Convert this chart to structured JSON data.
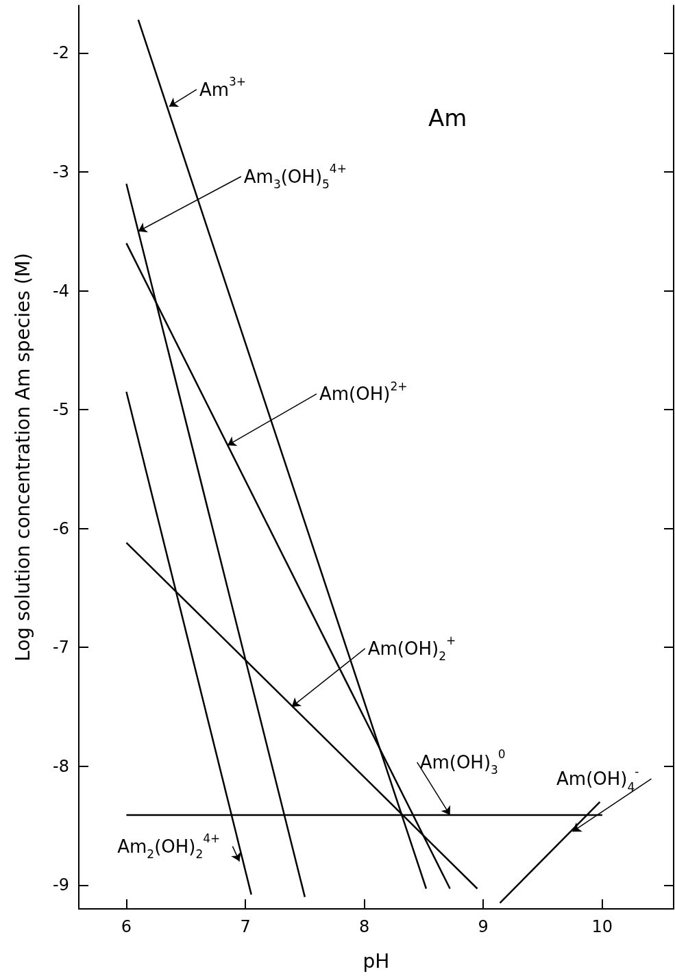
{
  "chart_data": {
    "type": "line",
    "title": "Am",
    "xlabel": "pH",
    "ylabel": "Log solution concentration Am species (M)",
    "xlim": [
      5.6,
      10.6
    ],
    "xticks": [
      6,
      7,
      8,
      9,
      10
    ],
    "ylim": [
      -9.2,
      -1.6
    ],
    "yticks": [
      -9,
      -8,
      -7,
      -6,
      -5,
      -4,
      -3,
      -2
    ],
    "grid": false,
    "marker": "none",
    "line_style": "solid",
    "series": [
      {
        "color": "#000000",
        "x": [
          6.1,
          8.52
        ],
        "values": [
          -1.72,
          -9.03
        ]
      },
      {
        "color": "#000000",
        "x": [
          6,
          7.5
        ],
        "values": [
          -3.1,
          -9.1
        ]
      },
      {
        "color": "#000000",
        "x": [
          6,
          8.72
        ],
        "values": [
          -3.6,
          -9.03
        ]
      },
      {
        "color": "#000000",
        "x": [
          6,
          7.05
        ],
        "values": [
          -4.85,
          -9.08
        ]
      },
      {
        "color": "#000000",
        "x": [
          6,
          8.95
        ],
        "values": [
          -6.12,
          -9.03
        ]
      },
      {
        "color": "#000000",
        "x": [
          6,
          10
        ],
        "values": [
          -8.41,
          -8.41
        ]
      },
      {
        "color": "#000000",
        "x": [
          9.14,
          9.98
        ],
        "values": [
          -9.15,
          -8.3
        ]
      }
    ],
    "annotations": [
      {
        "text": "Am$^{3+}$",
        "x": 6.36,
        "y": -2.45
      },
      {
        "text": "Am$_{3}$(OH)$_{5}$$^{4+}$",
        "x": 6.1,
        "y": -3.5
      },
      {
        "text": "Am(OH)$^{2+}$",
        "x": 6.85,
        "y": -5.3
      },
      {
        "text": "Am(OH)$_{2}$$^{+}$",
        "x": 7.39,
        "y": -7.5
      },
      {
        "text": "Am(OH)$_{3}$$^{0}$",
        "x": 8.72,
        "y": -8.41
      },
      {
        "text": "Am(OH)$_{4}$$^{-}$",
        "x": 9.75,
        "y": -8.55
      },
      {
        "text": "Am$_{2}$(OH)$_{2}$$^{4+}$",
        "x": 6.95,
        "y": -8.8
      }
    ]
  }
}
